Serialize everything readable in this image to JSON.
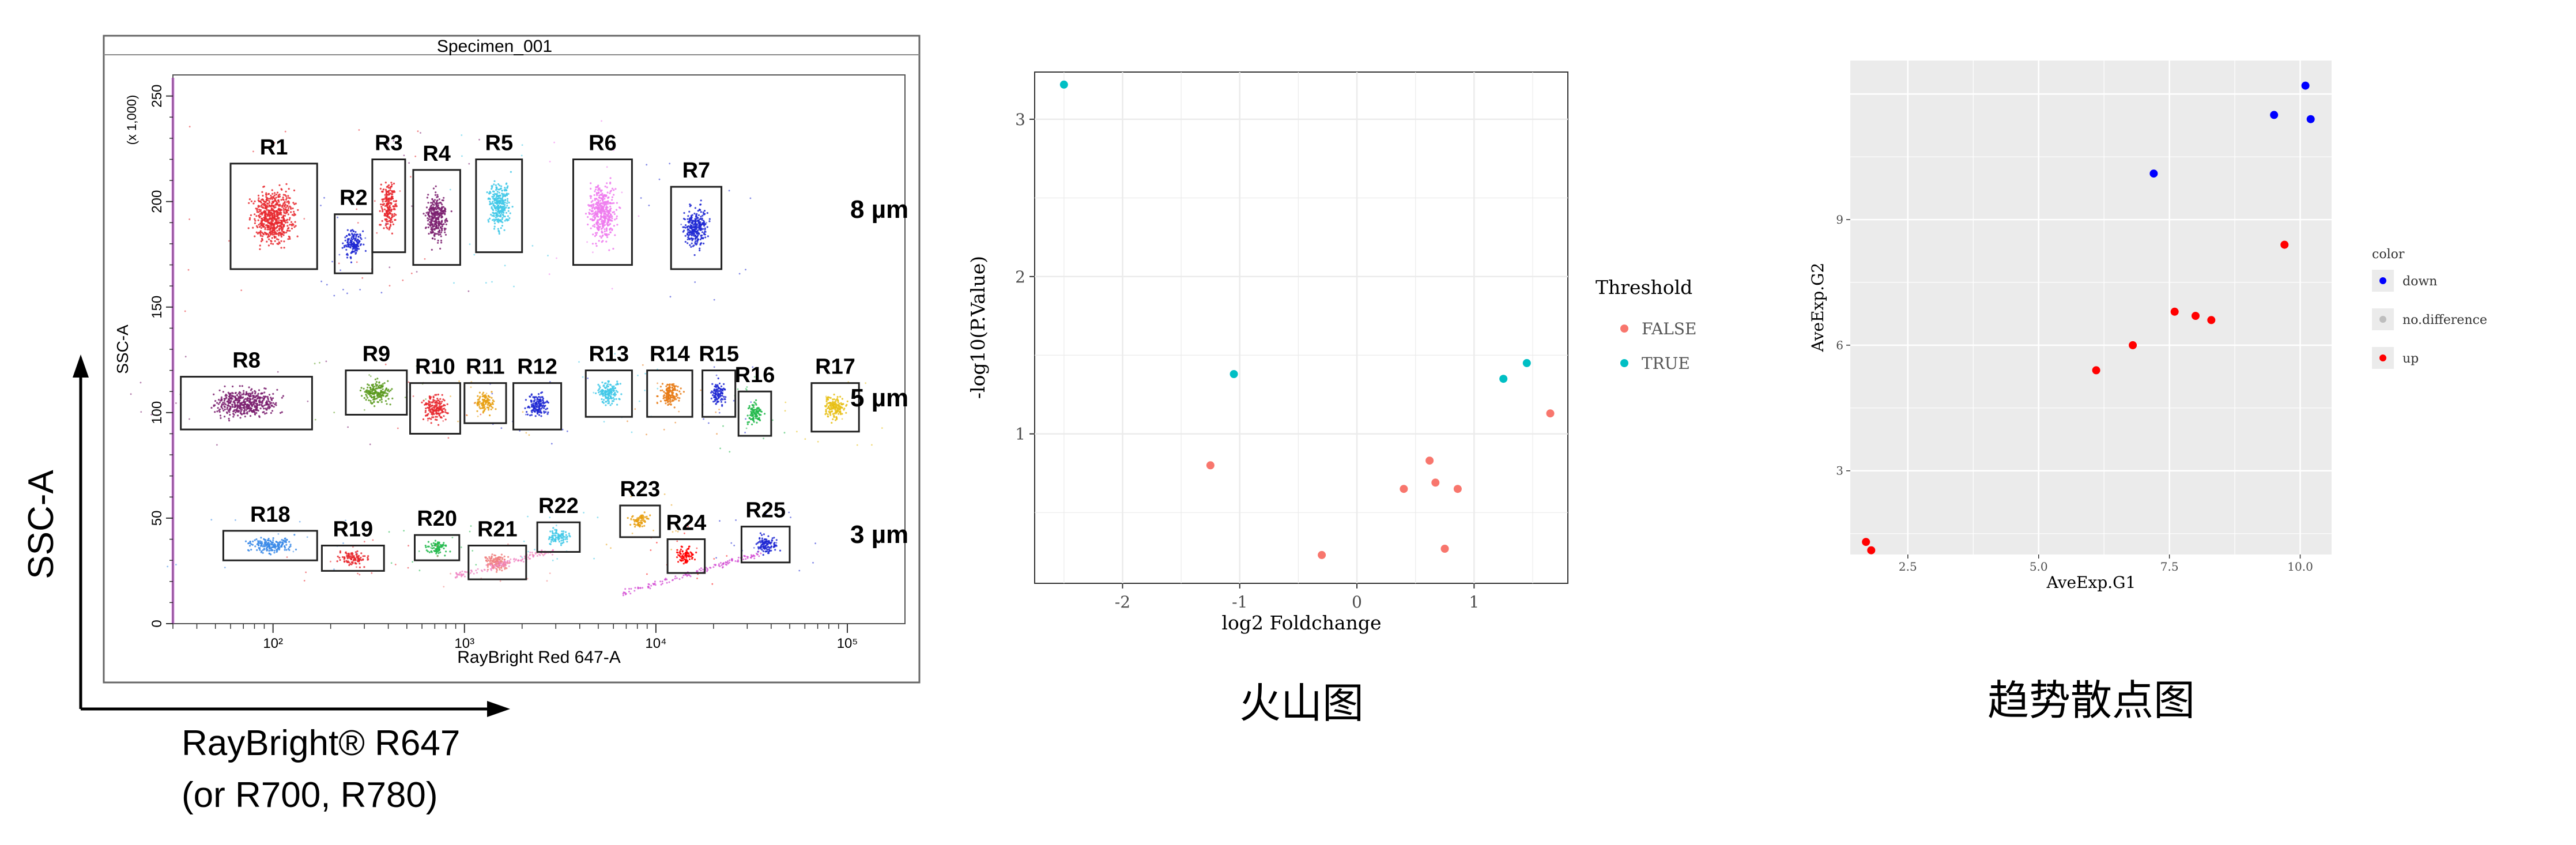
{
  "flow": {
    "specimen": "Specimen_001",
    "x_axis_label": "RayBright Red 647-A",
    "y_axis_label": "SSC-A",
    "y_multiplier": "(x 1,000)",
    "outer_y_label": "SSC-A",
    "outer_x_label_line1": "RayBright® R647",
    "outer_x_label_line2": "(or R700, R780)",
    "y_ticks": [
      "0",
      "50",
      "100",
      "150",
      "200",
      "250"
    ],
    "x_ticks": [
      "10²",
      "10³",
      "10⁴",
      "10⁵"
    ],
    "size_labels": [
      "8 µm",
      "5 µm",
      "3 µm"
    ]
  },
  "volcano": {
    "caption": "火山图",
    "xlabel": "log2 Foldchange",
    "ylabel": "-log10(P.Value)",
    "legend_title": "Threshold",
    "legend_items": [
      "FALSE",
      "TRUE"
    ],
    "x_ticks": [
      "-2",
      "-1",
      "0",
      "1"
    ],
    "y_ticks": [
      "1",
      "2",
      "3"
    ]
  },
  "trend": {
    "caption": "趋势散点图",
    "xlabel": "AveExp.G1",
    "ylabel": "AveExp.G2",
    "legend_title": "color",
    "legend_items": [
      "down",
      "no.difference",
      "up"
    ],
    "x_ticks": [
      "2.5",
      "5.0",
      "7.5",
      "10.0"
    ],
    "y_ticks": [
      "3",
      "6",
      "9"
    ]
  },
  "colors": {
    "false": "#F8766D",
    "true": "#00BFC4",
    "down": "#0000FF",
    "up": "#FF0000",
    "no_difference": "#BEBEBE"
  },
  "chart_data": [
    {
      "type": "scatter",
      "title": "Specimen_001",
      "xlabel": "RayBright Red 647-A",
      "ylabel": "SSC-A",
      "x_scale": "log",
      "xlim": [
        30,
        200000
      ],
      "ylim": [
        0,
        260
      ],
      "gates": [
        {
          "name": "R1",
          "x_range": [
            60,
            170
          ],
          "y_range": [
            168,
            218
          ],
          "color": "#E8282E"
        },
        {
          "name": "R2",
          "x_range": [
            210,
            330
          ],
          "y_range": [
            166,
            194
          ],
          "color": "#1E28D2"
        },
        {
          "name": "R3",
          "x_range": [
            330,
            490
          ],
          "y_range": [
            176,
            220
          ],
          "color": "#E8282E"
        },
        {
          "name": "R4",
          "x_range": [
            540,
            950
          ],
          "y_range": [
            170,
            215
          ],
          "color": "#7A1E6E"
        },
        {
          "name": "R5",
          "x_range": [
            1150,
            2000
          ],
          "y_range": [
            176,
            220
          ],
          "color": "#40C8E8"
        },
        {
          "name": "R6",
          "x_range": [
            3700,
            7500
          ],
          "y_range": [
            170,
            220
          ],
          "color": "#EE7AEE"
        },
        {
          "name": "R7",
          "x_range": [
            12000,
            22000
          ],
          "y_range": [
            168,
            207
          ],
          "color": "#1E28D2"
        },
        {
          "name": "R8",
          "x_range": [
            33,
            160
          ],
          "y_range": [
            92,
            117
          ],
          "color": "#7A1E6E"
        },
        {
          "name": "R9",
          "x_range": [
            240,
            500
          ],
          "y_range": [
            99,
            120
          ],
          "color": "#5A9A1E"
        },
        {
          "name": "R10",
          "x_range": [
            520,
            950
          ],
          "y_range": [
            90,
            114
          ],
          "color": "#E8282E"
        },
        {
          "name": "R11",
          "x_range": [
            1000,
            1650
          ],
          "y_range": [
            95,
            114
          ],
          "color": "#E8A014"
        },
        {
          "name": "R12",
          "x_range": [
            1800,
            3200
          ],
          "y_range": [
            92,
            114
          ],
          "color": "#1E28D2"
        },
        {
          "name": "R13",
          "x_range": [
            4300,
            7500
          ],
          "y_range": [
            98,
            120
          ],
          "color": "#40C8E8"
        },
        {
          "name": "R14",
          "x_range": [
            9000,
            15500
          ],
          "y_range": [
            98,
            120
          ],
          "color": "#E87A14"
        },
        {
          "name": "R15",
          "x_range": [
            17500,
            26000
          ],
          "y_range": [
            98,
            120
          ],
          "color": "#1E28D2"
        },
        {
          "name": "R16",
          "x_range": [
            27000,
            40000
          ],
          "y_range": [
            89,
            110
          ],
          "color": "#20B84A"
        },
        {
          "name": "R17",
          "x_range": [
            65000,
            115000
          ],
          "y_range": [
            91,
            114
          ],
          "color": "#E8C014"
        },
        {
          "name": "R18",
          "x_range": [
            55,
            170
          ],
          "y_range": [
            30,
            44
          ],
          "color": "#3A8AE8"
        },
        {
          "name": "R19",
          "x_range": [
            180,
            380
          ],
          "y_range": [
            25,
            37
          ],
          "color": "#E8282E"
        },
        {
          "name": "R20",
          "x_range": [
            550,
            940
          ],
          "y_range": [
            30,
            42
          ],
          "color": "#20B84A"
        },
        {
          "name": "R21",
          "x_range": [
            1050,
            2100
          ],
          "y_range": [
            21,
            37
          ],
          "color": "#F08080"
        },
        {
          "name": "R22",
          "x_range": [
            2400,
            4000
          ],
          "y_range": [
            34,
            48
          ],
          "color": "#40C8E8"
        },
        {
          "name": "R23",
          "x_range": [
            6500,
            10500
          ],
          "y_range": [
            41,
            56
          ],
          "color": "#E8A014"
        },
        {
          "name": "R24",
          "x_range": [
            11500,
            18000
          ],
          "y_range": [
            24,
            40
          ],
          "color": "#FF0000"
        },
        {
          "name": "R25",
          "x_range": [
            28000,
            50000
          ],
          "y_range": [
            29,
            46
          ],
          "color": "#1E28D2"
        }
      ],
      "size_labels": [
        "8 µm",
        "5 µm",
        "3 µm"
      ]
    },
    {
      "type": "scatter",
      "xlabel": "log2 Foldchange",
      "ylabel": "-log10(P.Value)",
      "xlim": [
        -2.75,
        1.8
      ],
      "ylim": [
        0.05,
        3.3
      ],
      "legend": {
        "title": "Threshold",
        "position": "right"
      },
      "series": [
        {
          "name": "FALSE",
          "points": [
            [
              -1.25,
              0.8
            ],
            [
              -0.3,
              0.23
            ],
            [
              0.4,
              0.65
            ],
            [
              0.62,
              0.83
            ],
            [
              0.67,
              0.69
            ],
            [
              0.75,
              0.27
            ],
            [
              0.86,
              0.65
            ],
            [
              1.65,
              1.13
            ]
          ]
        },
        {
          "name": "TRUE",
          "points": [
            [
              -2.5,
              3.22
            ],
            [
              -1.05,
              1.38
            ],
            [
              1.25,
              1.35
            ],
            [
              1.45,
              1.45
            ]
          ]
        }
      ]
    },
    {
      "type": "scatter",
      "xlabel": "AveExp.G1",
      "ylabel": "AveExp.G2",
      "xlim": [
        1.4,
        10.6
      ],
      "ylim": [
        1.0,
        12.8
      ],
      "legend": {
        "title": "color",
        "position": "right"
      },
      "series": [
        {
          "name": "down",
          "points": [
            [
              7.2,
              10.1
            ],
            [
              9.5,
              11.5
            ],
            [
              10.1,
              12.2
            ],
            [
              10.2,
              11.4
            ]
          ]
        },
        {
          "name": "no.difference",
          "points": []
        },
        {
          "name": "up",
          "points": [
            [
              1.7,
              1.3
            ],
            [
              1.8,
              1.1
            ],
            [
              6.1,
              5.4
            ],
            [
              6.8,
              6.0
            ],
            [
              7.6,
              6.8
            ],
            [
              8.0,
              6.7
            ],
            [
              8.3,
              6.6
            ],
            [
              9.7,
              8.4
            ]
          ]
        }
      ]
    }
  ]
}
